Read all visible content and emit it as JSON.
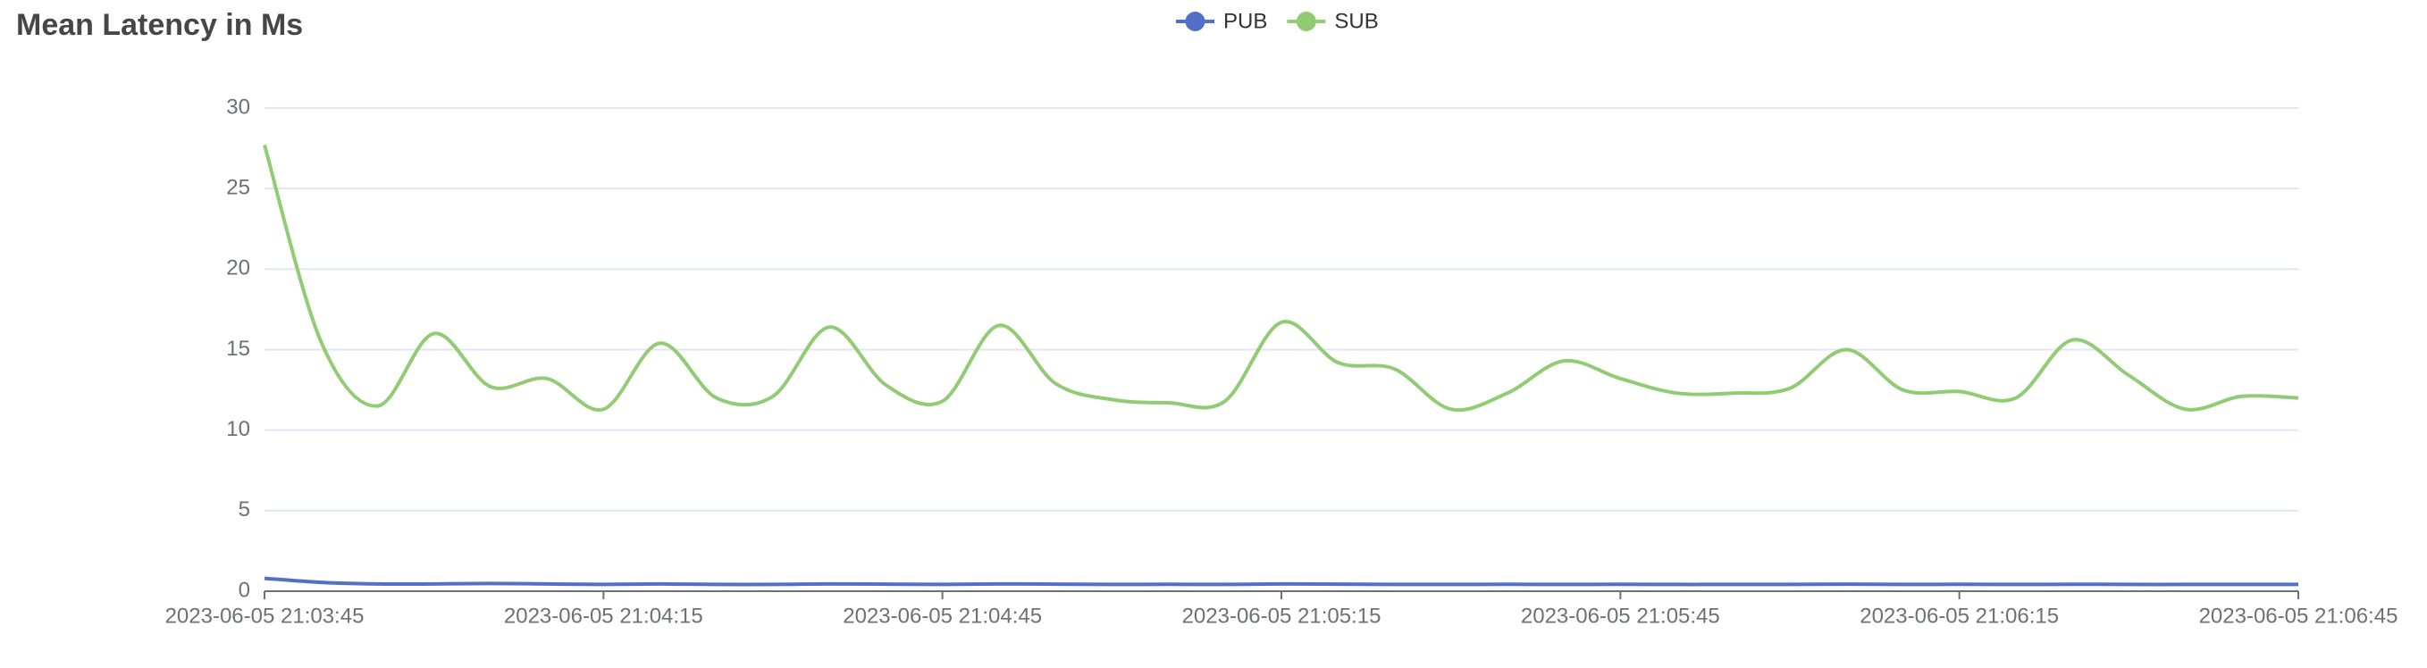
{
  "chart_data": {
    "type": "line",
    "title": "Mean Latency in Ms",
    "x": [
      "2023-06-05 21:03:45",
      "2023-06-05 21:03:50",
      "2023-06-05 21:03:55",
      "2023-06-05 21:04:00",
      "2023-06-05 21:04:05",
      "2023-06-05 21:04:10",
      "2023-06-05 21:04:15",
      "2023-06-05 21:04:20",
      "2023-06-05 21:04:25",
      "2023-06-05 21:04:30",
      "2023-06-05 21:04:35",
      "2023-06-05 21:04:40",
      "2023-06-05 21:04:45",
      "2023-06-05 21:04:50",
      "2023-06-05 21:04:55",
      "2023-06-05 21:05:00",
      "2023-06-05 21:05:05",
      "2023-06-05 21:05:10",
      "2023-06-05 21:05:15",
      "2023-06-05 21:05:20",
      "2023-06-05 21:05:25",
      "2023-06-05 21:05:30",
      "2023-06-05 21:05:35",
      "2023-06-05 21:05:40",
      "2023-06-05 21:05:45",
      "2023-06-05 21:05:50",
      "2023-06-05 21:05:55",
      "2023-06-05 21:06:00",
      "2023-06-05 21:06:05",
      "2023-06-05 21:06:10",
      "2023-06-05 21:06:15",
      "2023-06-05 21:06:20",
      "2023-06-05 21:06:25",
      "2023-06-05 21:06:30",
      "2023-06-05 21:06:35",
      "2023-06-05 21:06:40",
      "2023-06-05 21:06:45"
    ],
    "series": [
      {
        "name": "PUB",
        "color": "#5470c6",
        "values": [
          0.8,
          0.55,
          0.45,
          0.45,
          0.48,
          0.45,
          0.42,
          0.45,
          0.42,
          0.42,
          0.45,
          0.44,
          0.42,
          0.45,
          0.44,
          0.42,
          0.43,
          0.42,
          0.45,
          0.44,
          0.42,
          0.42,
          0.43,
          0.42,
          0.43,
          0.42,
          0.42,
          0.42,
          0.44,
          0.42,
          0.43,
          0.42,
          0.43,
          0.42,
          0.42,
          0.42,
          0.42
        ]
      },
      {
        "name": "SUB",
        "color": "#91cc75",
        "values": [
          27.7,
          15.5,
          11.5,
          16.0,
          12.7,
          13.2,
          11.3,
          15.4,
          12.0,
          12.1,
          16.4,
          12.8,
          11.8,
          16.5,
          12.9,
          11.9,
          11.7,
          11.8,
          16.7,
          14.2,
          13.8,
          11.3,
          12.3,
          14.3,
          13.2,
          12.3,
          12.3,
          12.6,
          15.0,
          12.5,
          12.4,
          12.0,
          15.6,
          13.4,
          11.3,
          12.1,
          12.0
        ]
      }
    ],
    "xlim": [
      "2023-06-05 21:03:45",
      "2023-06-05 21:06:45"
    ],
    "xticks": [
      "2023-06-05 21:03:45",
      "2023-06-05 21:04:15",
      "2023-06-05 21:04:45",
      "2023-06-05 21:05:15",
      "2023-06-05 21:05:45",
      "2023-06-05 21:06:15",
      "2023-06-05 21:06:45"
    ],
    "ylim": [
      0,
      30
    ],
    "yticks": [
      0,
      5,
      10,
      15,
      20,
      25,
      30
    ],
    "grid": true,
    "legend": "top"
  }
}
